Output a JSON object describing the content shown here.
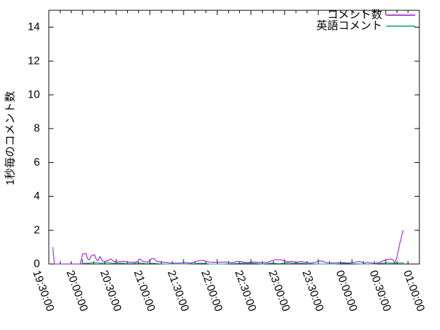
{
  "chart_data": {
    "type": "line",
    "title": "",
    "xlabel": "",
    "ylabel": "1秒毎のコメント数",
    "ylim": [
      0,
      15
    ],
    "y_ticks": [
      0,
      2,
      4,
      6,
      8,
      10,
      12,
      14
    ],
    "x_tick_labels": [
      "19:30:00",
      "20:00:00",
      "20:30:00",
      "21:00:00",
      "21:30:00",
      "22:00:00",
      "22:30:00",
      "23:00:00",
      "23:30:00",
      "00:00:00",
      "00:30:00",
      "01:00:00"
    ],
    "x_minor_ticks_per_interval": 2,
    "x_range": [
      "19:30:00",
      "01:00:00"
    ],
    "grid": "off",
    "legend_position": "top-right-inside",
    "background_color": "#ffffff",
    "axis_color": "#000000",
    "series": [
      {
        "name": "コメント数",
        "color": "#9400d3",
        "points": [
          [
            "19:33:30",
            1.0
          ],
          [
            "19:35:00",
            0
          ],
          [
            "19:58:00",
            0
          ],
          [
            "20:00:00",
            0.6
          ],
          [
            "20:03:00",
            0.62
          ],
          [
            "20:04:30",
            0.3
          ],
          [
            "20:06:00",
            0.25
          ],
          [
            "20:08:00",
            0.5
          ],
          [
            "20:10:30",
            0.55
          ],
          [
            "20:12:30",
            0.25
          ],
          [
            "20:14:00",
            0.2
          ],
          [
            "20:15:30",
            0.45
          ],
          [
            "20:17:30",
            0.2
          ],
          [
            "20:20:00",
            0.15
          ],
          [
            "20:22:30",
            0.2
          ],
          [
            "20:25:00",
            0.3
          ],
          [
            "20:28:00",
            0.15
          ],
          [
            "20:31:00",
            0.12
          ],
          [
            "20:36:00",
            0.15
          ],
          [
            "20:42:00",
            0.1
          ],
          [
            "20:48:00",
            0.12
          ],
          [
            "20:51:00",
            0.3
          ],
          [
            "20:54:00",
            0.15
          ],
          [
            "20:58:00",
            0.1
          ],
          [
            "21:01:00",
            0.3
          ],
          [
            "21:03:30",
            0.33
          ],
          [
            "21:06:00",
            0.15
          ],
          [
            "21:10:00",
            0.12
          ],
          [
            "21:14:00",
            0.1
          ],
          [
            "21:19:00",
            0.05
          ],
          [
            "21:25:00",
            0.05
          ],
          [
            "21:31:00",
            0.08
          ],
          [
            "21:37:00",
            0.06
          ],
          [
            "21:43:30",
            0.2
          ],
          [
            "21:47:30",
            0.22
          ],
          [
            "21:51:30",
            0.12
          ],
          [
            "21:57:00",
            0.1
          ],
          [
            "22:02:00",
            0.1
          ],
          [
            "22:08:00",
            0.12
          ],
          [
            "22:13:00",
            0.08
          ],
          [
            "22:18:00",
            0.15
          ],
          [
            "22:22:00",
            0.14
          ],
          [
            "22:26:00",
            0.08
          ],
          [
            "22:32:00",
            0.12
          ],
          [
            "22:36:00",
            0.1
          ],
          [
            "22:41:00",
            0.08
          ],
          [
            "22:45:00",
            0.1
          ],
          [
            "22:51:00",
            0.25
          ],
          [
            "22:57:00",
            0.25
          ],
          [
            "23:02:00",
            0.12
          ],
          [
            "23:06:00",
            0.15
          ],
          [
            "23:11:00",
            0.1
          ],
          [
            "23:14:30",
            0.15
          ],
          [
            "23:18:00",
            0.1
          ],
          [
            "23:24:00",
            0.05
          ],
          [
            "23:29:00",
            0.15
          ],
          [
            "23:33:00",
            0.18
          ],
          [
            "23:37:00",
            0.08
          ],
          [
            "23:42:00",
            0.05
          ],
          [
            "23:47:00",
            0.08
          ],
          [
            "23:52:00",
            0.08
          ],
          [
            "23:57:00",
            0.06
          ],
          [
            "00:02:00",
            0.1
          ],
          [
            "00:07:00",
            0.15
          ],
          [
            "00:11:00",
            0.05
          ],
          [
            "00:14:00",
            0.1
          ],
          [
            "00:17:00",
            0.05
          ],
          [
            "00:21:00",
            0.05
          ],
          [
            "00:25:00",
            0.1
          ],
          [
            "00:28:00",
            0.2
          ],
          [
            "00:31:00",
            0.25
          ],
          [
            "00:34:00",
            0.3
          ],
          [
            "00:36:30",
            0.25
          ],
          [
            "00:38:00",
            0.05
          ],
          [
            "00:40:00",
            0.4
          ],
          [
            "00:42:30",
            1.2
          ],
          [
            "00:45:30",
            2.0
          ]
        ]
      },
      {
        "name": "英語コメント",
        "color": "#009e73",
        "points": [
          [
            "19:59:00",
            0
          ],
          [
            "20:02:00",
            0.05
          ],
          [
            "20:06:00",
            0.05
          ],
          [
            "20:09:00",
            0.08
          ],
          [
            "20:12:00",
            0.1
          ],
          [
            "20:14:00",
            0.08
          ],
          [
            "20:17:00",
            0.05
          ],
          [
            "20:20:00",
            0.08
          ],
          [
            "20:23:00",
            0.1
          ],
          [
            "20:26:00",
            0.05
          ],
          [
            "20:30:00",
            0.05
          ],
          [
            "20:35:00",
            0.05
          ],
          [
            "20:40:00",
            0.02
          ],
          [
            "20:45:00",
            0.03
          ],
          [
            "20:49:00",
            0.08
          ],
          [
            "20:53:00",
            0.05
          ],
          [
            "20:57:00",
            0.02
          ],
          [
            "21:02:00",
            0.05
          ],
          [
            "21:08:00",
            0.02
          ],
          [
            "21:15:00",
            0
          ],
          [
            "21:30:00",
            0
          ],
          [
            "21:40:00",
            0.02
          ],
          [
            "21:44:00",
            0.05
          ],
          [
            "21:48:00",
            0.05
          ],
          [
            "21:53:00",
            0
          ],
          [
            "22:05:00",
            0
          ],
          [
            "22:16:00",
            0.03
          ],
          [
            "22:24:00",
            0.05
          ],
          [
            "22:32:00",
            0.05
          ],
          [
            "22:40:00",
            0
          ],
          [
            "22:49:00",
            0.05
          ],
          [
            "22:55:00",
            0.02
          ],
          [
            "23:03:00",
            0.08
          ],
          [
            "23:08:00",
            0.05
          ],
          [
            "23:13:00",
            0.05
          ],
          [
            "23:20:00",
            0.02
          ],
          [
            "23:30:00",
            0
          ],
          [
            "23:45:00",
            0
          ],
          [
            "23:54:00",
            0.05
          ],
          [
            "00:00:00",
            0.02
          ],
          [
            "00:10:00",
            0
          ],
          [
            "00:20:00",
            0
          ],
          [
            "00:27:00",
            0.05
          ],
          [
            "00:32:00",
            0.08
          ],
          [
            "00:36:00",
            0.05
          ],
          [
            "00:40:00",
            0.05
          ],
          [
            "00:43:30",
            0.08
          ],
          [
            "00:46:00",
            0.05
          ]
        ]
      }
    ]
  }
}
